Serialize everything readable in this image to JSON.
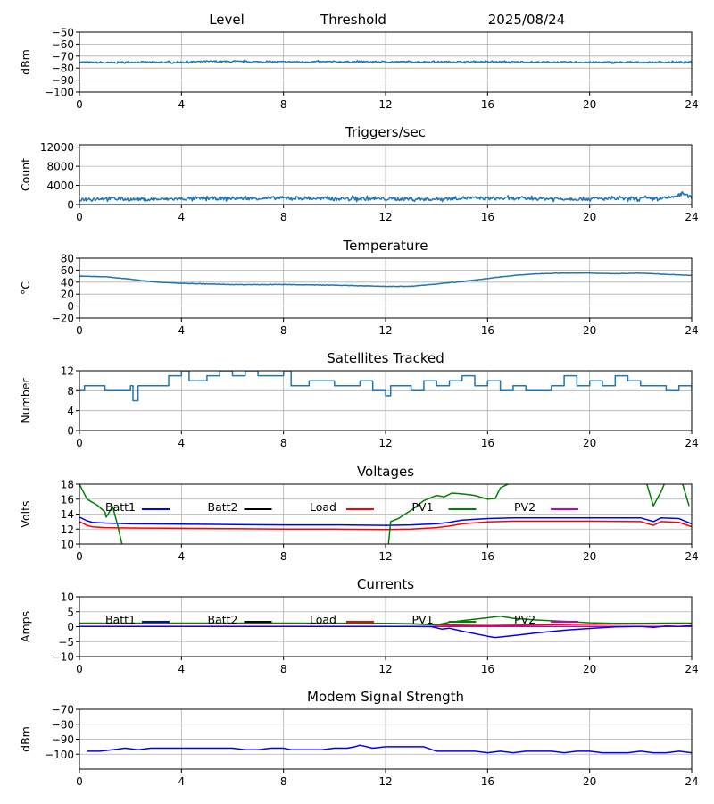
{
  "header": {
    "level": "Level",
    "threshold": "Threshold",
    "date": "2025/08/24"
  },
  "chart_data": [
    {
      "id": "level",
      "type": "line",
      "title": "",
      "ylabel": "dBm",
      "xlim": [
        0,
        24
      ],
      "ylim": [
        -100,
        -50
      ],
      "xticks": [
        0,
        4,
        8,
        12,
        16,
        20,
        24
      ],
      "yticks": [
        -50,
        -60,
        -70,
        -80,
        -90,
        -100
      ],
      "ytick_labels": [
        "−50",
        "−60",
        "−70",
        "−80",
        "−90",
        "−100"
      ],
      "grid": true,
      "series": [
        {
          "color": "#1f77b4",
          "noise": 0.6,
          "x": [
            0,
            1,
            2,
            3,
            4,
            5,
            6,
            8,
            10,
            12,
            14,
            16,
            18,
            20,
            22,
            24
          ],
          "y": [
            -75,
            -75.5,
            -75,
            -75.2,
            -75,
            -74.5,
            -74.6,
            -74.8,
            -74.7,
            -74.8,
            -74.8,
            -74.8,
            -75,
            -75.1,
            -75.2,
            -75
          ]
        }
      ]
    },
    {
      "id": "triggers",
      "type": "line",
      "title": "Triggers/sec",
      "ylabel": "Count",
      "xlim": [
        0,
        24
      ],
      "ylim": [
        0,
        12500
      ],
      "xticks": [
        0,
        4,
        8,
        12,
        16,
        20,
        24
      ],
      "yticks": [
        0,
        4000,
        8000,
        12000
      ],
      "ytick_labels": [
        "0",
        "4000",
        "8000",
        "12000"
      ],
      "grid": true,
      "series": [
        {
          "color": "#1f77b4",
          "noise": 350,
          "x": [
            0,
            1,
            2,
            3,
            4,
            5,
            6,
            8,
            10,
            12,
            14,
            15,
            16,
            18,
            20,
            22,
            23,
            23.7,
            24
          ],
          "y": [
            1100,
            1300,
            1100,
            1100,
            1200,
            1300,
            1300,
            1350,
            1250,
            1200,
            1150,
            1400,
            1300,
            1250,
            1200,
            1250,
            1300,
            2200,
            1400
          ]
        }
      ]
    },
    {
      "id": "temperature",
      "type": "line",
      "title": "Temperature",
      "ylabel": "°C",
      "xlim": [
        0,
        24
      ],
      "ylim": [
        -20,
        80
      ],
      "xticks": [
        0,
        4,
        8,
        12,
        16,
        20,
        24
      ],
      "yticks": [
        -20,
        0,
        20,
        40,
        60,
        80
      ],
      "ytick_labels": [
        "−20",
        "0",
        "20",
        "40",
        "60",
        "80"
      ],
      "grid": true,
      "series": [
        {
          "color": "#1f77b4",
          "noise": 0.3,
          "x": [
            0,
            1,
            2,
            3,
            4,
            5,
            6,
            8,
            10,
            12,
            13,
            14,
            15,
            16,
            17,
            18,
            19,
            20,
            21,
            22,
            23,
            24
          ],
          "y": [
            50,
            49,
            45,
            40,
            38,
            37,
            36,
            36,
            35,
            33,
            33,
            37,
            41,
            46,
            51,
            54,
            55,
            55,
            54,
            55,
            53,
            51
          ]
        }
      ]
    },
    {
      "id": "satellites",
      "type": "line",
      "step": true,
      "title": "Satellites Tracked",
      "ylabel": "Number",
      "xlim": [
        0,
        24
      ],
      "ylim": [
        0,
        12
      ],
      "xticks": [
        0,
        4,
        8,
        12,
        16,
        20,
        24
      ],
      "yticks": [
        0,
        4,
        8,
        12
      ],
      "ytick_labels": [
        "0",
        "4",
        "8",
        "12"
      ],
      "grid": true,
      "series": [
        {
          "color": "#1f77b4",
          "x": [
            0,
            0.2,
            0.5,
            1,
            2,
            2.1,
            2.3,
            3,
            3.5,
            4,
            4.3,
            5,
            5.5,
            6,
            6.5,
            7,
            8,
            8.3,
            9,
            10,
            11,
            11.5,
            12,
            12.2,
            13,
            13.5,
            14,
            14.5,
            15,
            15.5,
            16,
            16.5,
            17,
            17.5,
            18,
            18.5,
            19,
            19.5,
            20,
            20.5,
            21,
            21.5,
            22,
            22.5,
            23,
            23.5,
            24
          ],
          "y": [
            8,
            9,
            9,
            8,
            9,
            6,
            9,
            9,
            11,
            12,
            10,
            11,
            12,
            11,
            12,
            11,
            12,
            9,
            10,
            9,
            10,
            8,
            7,
            9,
            8,
            10,
            9,
            10,
            11,
            9,
            10,
            8,
            9,
            8,
            8,
            9,
            11,
            9,
            10,
            9,
            11,
            10,
            9,
            9,
            8,
            9,
            8
          ]
        }
      ]
    },
    {
      "id": "voltages",
      "type": "line",
      "title": "Voltages",
      "ylabel": "Volts",
      "xlim": [
        0,
        24
      ],
      "ylim": [
        10,
        18
      ],
      "xticks": [
        0,
        4,
        8,
        12,
        16,
        20,
        24
      ],
      "yticks": [
        10,
        12,
        14,
        16,
        18
      ],
      "ytick_labels": [
        "10",
        "12",
        "14",
        "16",
        "18"
      ],
      "grid": true,
      "legend": [
        {
          "name": "Batt1",
          "color": "#0000ff"
        },
        {
          "name": "Batt2",
          "color": "#000000"
        },
        {
          "name": "Load",
          "color": "#ff0000"
        },
        {
          "name": "PV1",
          "color": "#008000"
        },
        {
          "name": "PV2",
          "color": "#bf00bf"
        }
      ],
      "series": [
        {
          "name": "Batt1",
          "color": "#0000ff",
          "x": [
            0,
            0.3,
            0.5,
            1,
            2,
            4,
            6,
            8,
            10,
            12,
            13,
            14,
            14.5,
            15,
            16,
            17,
            18,
            20,
            22,
            22.5,
            22.8,
            23.5,
            24
          ],
          "y": [
            13.6,
            13.1,
            12.9,
            12.8,
            12.7,
            12.65,
            12.6,
            12.55,
            12.55,
            12.5,
            12.55,
            12.7,
            12.9,
            13.2,
            13.4,
            13.5,
            13.5,
            13.5,
            13.5,
            13.0,
            13.5,
            13.4,
            12.7
          ]
        },
        {
          "name": "Load",
          "color": "#ff0000",
          "x": [
            0,
            0.3,
            0.5,
            1,
            2,
            4,
            6,
            8,
            10,
            12,
            13,
            14,
            14.5,
            15,
            16,
            17,
            18,
            20,
            22,
            22.5,
            22.8,
            23.5,
            24
          ],
          "y": [
            13.0,
            12.5,
            12.3,
            12.2,
            12.15,
            12.1,
            12.05,
            12.0,
            12.0,
            11.95,
            12.0,
            12.2,
            12.4,
            12.7,
            12.95,
            13.05,
            13.05,
            13.05,
            13.0,
            12.5,
            13.0,
            12.9,
            12.3
          ]
        },
        {
          "name": "PV1",
          "color": "#008000",
          "segments": [
            {
              "x": [
                0,
                0.3,
                0.7,
                1,
                1.05,
                1.3,
                1.5,
                1.7
              ],
              "y": [
                18,
                16,
                15.2,
                14.3,
                13.6,
                15,
                12.5,
                9.5
              ]
            },
            {
              "x": [
                12.1,
                12.2,
                12.5,
                13,
                13.5,
                14,
                14.3,
                14.6,
                15,
                15.5,
                16,
                16.3,
                16.5,
                16.8,
                17
              ],
              "y": [
                9.5,
                13,
                13.4,
                14.5,
                15.8,
                16.5,
                16.3,
                16.8,
                16.7,
                16.5,
                16,
                16.1,
                17.5,
                18,
                18.3
              ]
            },
            {
              "x": [
                22.2,
                22.5,
                22.8,
                23
              ],
              "y": [
                18.5,
                15.1,
                17,
                18.6
              ]
            },
            {
              "x": [
                23.6,
                23.9
              ],
              "y": [
                18.5,
                15.1
              ]
            }
          ]
        }
      ]
    },
    {
      "id": "currents",
      "type": "line",
      "title": "Currents",
      "ylabel": "Amps",
      "xlim": [
        0,
        24
      ],
      "ylim": [
        -10,
        10
      ],
      "xticks": [
        0,
        4,
        8,
        12,
        16,
        20,
        24
      ],
      "yticks": [
        -10,
        -5,
        0,
        5,
        10
      ],
      "ytick_labels": [
        "−10",
        "−5",
        "0",
        "5",
        "10"
      ],
      "grid": true,
      "legend": [
        {
          "name": "Batt1",
          "color": "#0000ff"
        },
        {
          "name": "Batt2",
          "color": "#000000"
        },
        {
          "name": "Load",
          "color": "#ff0000"
        },
        {
          "name": "PV1",
          "color": "#008000"
        },
        {
          "name": "PV2",
          "color": "#bf00bf"
        }
      ],
      "series": [
        {
          "name": "PV2",
          "color": "#bf00bf",
          "x": [
            0,
            6,
            12,
            18,
            24
          ],
          "y": [
            0.1,
            0.1,
            0.1,
            0.1,
            0.1
          ]
        },
        {
          "name": "Load",
          "color": "#ff0000",
          "x": [
            0,
            4,
            8,
            12,
            13,
            14,
            16,
            18,
            20,
            22,
            24
          ],
          "y": [
            1.0,
            1.0,
            1.0,
            1.0,
            0.9,
            0.6,
            0.4,
            0.6,
            0.8,
            0.9,
            1.0
          ]
        },
        {
          "name": "PV1",
          "color": "#008000",
          "x": [
            0,
            4,
            8,
            12,
            13,
            14,
            14.5,
            15,
            16,
            16.5,
            17,
            18,
            19,
            20,
            21,
            22,
            23,
            24
          ],
          "y": [
            1.2,
            1.2,
            1.2,
            1.1,
            1.0,
            0.6,
            1.5,
            2.0,
            3.0,
            3.5,
            2.8,
            2.2,
            1.8,
            1.3,
            1.1,
            1.1,
            1.2,
            1.2
          ]
        },
        {
          "name": "Batt1",
          "color": "#0000ff",
          "x": [
            0,
            4,
            8,
            12,
            13,
            13.8,
            14.2,
            14.5,
            15,
            16,
            16.3,
            17,
            18,
            19,
            20,
            21,
            22,
            22.5,
            23,
            23.5,
            24
          ],
          "y": [
            0.1,
            0.1,
            0.1,
            0.1,
            0.1,
            0.0,
            -0.8,
            -0.5,
            -1.5,
            -3.2,
            -3.6,
            -3.0,
            -2.0,
            -1.2,
            -0.6,
            -0.1,
            0.1,
            -0.2,
            0.2,
            0.1,
            0.3
          ]
        }
      ]
    },
    {
      "id": "modem",
      "type": "line",
      "title": "Modem Signal Strength",
      "ylabel": "dBm",
      "xlim": [
        0,
        24
      ],
      "ylim": [
        -110,
        -70
      ],
      "xticks": [
        0,
        4,
        8,
        12,
        16,
        20,
        24
      ],
      "yticks": [
        -70,
        -80,
        -90,
        -100
      ],
      "ytick_labels": [
        "−70",
        "−80",
        "−90",
        "−100"
      ],
      "grid": true,
      "series": [
        {
          "color": "#0000ff",
          "x": [
            0.3,
            0.8,
            1.8,
            2.3,
            2.8,
            3.5,
            4,
            5,
            6,
            6.5,
            7,
            7.5,
            8,
            8.3,
            9,
            9.5,
            10,
            10.5,
            10.8,
            11,
            11.5,
            12,
            13,
            13.5,
            14,
            15,
            15.5,
            16,
            16.5,
            17,
            17.5,
            18,
            18.5,
            19,
            19.5,
            20,
            20.5,
            21,
            21.5,
            22,
            22.5,
            23,
            23.5,
            24
          ],
          "y": [
            -98,
            -98,
            -96,
            -97,
            -96,
            -96,
            -96,
            -96,
            -96,
            -97,
            -97,
            -96,
            -96,
            -97,
            -97,
            -97,
            -96,
            -96,
            -95,
            -94,
            -96,
            -95,
            -95,
            -95,
            -98,
            -98,
            -98,
            -99,
            -98,
            -99,
            -98,
            -98,
            -98,
            -99,
            -98,
            -98,
            -99,
            -99,
            -99,
            -98,
            -99,
            -99,
            -98,
            -99
          ]
        }
      ]
    }
  ]
}
